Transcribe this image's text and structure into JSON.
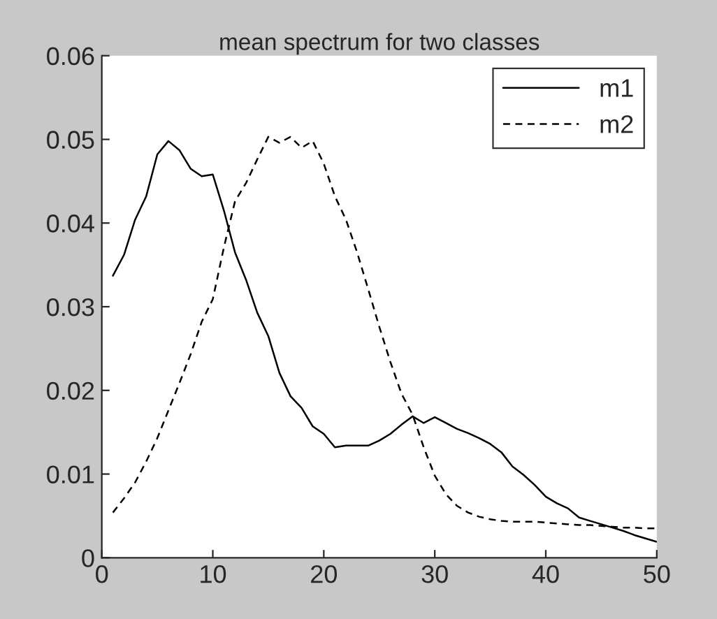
{
  "chart_data": {
    "type": "line",
    "title": "mean spectrum for two classes",
    "x": [
      1,
      2,
      3,
      4,
      5,
      6,
      7,
      8,
      9,
      10,
      11,
      12,
      13,
      14,
      15,
      16,
      17,
      18,
      19,
      20,
      21,
      22,
      23,
      24,
      25,
      26,
      27,
      28,
      29,
      30,
      31,
      32,
      33,
      34,
      35,
      36,
      37,
      38,
      39,
      40,
      41,
      42,
      43,
      44,
      45,
      46,
      47,
      48,
      49,
      50
    ],
    "series": [
      {
        "name": "m1",
        "color": "#000000",
        "line_style": "solid",
        "values": [
          0.0337,
          0.0362,
          0.0404,
          0.0432,
          0.0482,
          0.0498,
          0.0487,
          0.0465,
          0.0456,
          0.0458,
          0.0415,
          0.0365,
          0.0332,
          0.0293,
          0.0265,
          0.0221,
          0.0193,
          0.0179,
          0.0157,
          0.0148,
          0.0132,
          0.0134,
          0.0134,
          0.0134,
          0.014,
          0.0148,
          0.0159,
          0.0169,
          0.0161,
          0.0168,
          0.0161,
          0.0154,
          0.0149,
          0.0143,
          0.0136,
          0.0126,
          0.0109,
          0.0099,
          0.0087,
          0.0073,
          0.0065,
          0.0059,
          0.0048,
          0.0044,
          0.004,
          0.0036,
          0.0032,
          0.0027,
          0.0023,
          0.0019
        ]
      },
      {
        "name": "m2",
        "color": "#000000",
        "line_style": "dashed",
        "values": [
          0.0054,
          0.0071,
          0.009,
          0.0115,
          0.0143,
          0.0176,
          0.0209,
          0.0243,
          0.0282,
          0.0309,
          0.0371,
          0.0426,
          0.0448,
          0.0476,
          0.0503,
          0.0496,
          0.0503,
          0.049,
          0.0498,
          0.0471,
          0.0432,
          0.0404,
          0.0365,
          0.0321,
          0.0276,
          0.0234,
          0.0196,
          0.0171,
          0.0132,
          0.0098,
          0.0076,
          0.0062,
          0.0054,
          0.0049,
          0.0046,
          0.0044,
          0.0043,
          0.0043,
          0.0043,
          0.0042,
          0.0041,
          0.004,
          0.0039,
          0.0039,
          0.0038,
          0.0037,
          0.0036,
          0.0036,
          0.0035,
          0.0035
        ]
      }
    ],
    "xlim": [
      0,
      50
    ],
    "xticks": [
      0,
      10,
      20,
      30,
      40,
      50
    ],
    "ylim": [
      0,
      0.06
    ],
    "yticks": [
      0,
      0.01,
      0.02,
      0.03,
      0.04,
      0.05,
      0.06
    ],
    "grid": false,
    "legend": "top right"
  }
}
